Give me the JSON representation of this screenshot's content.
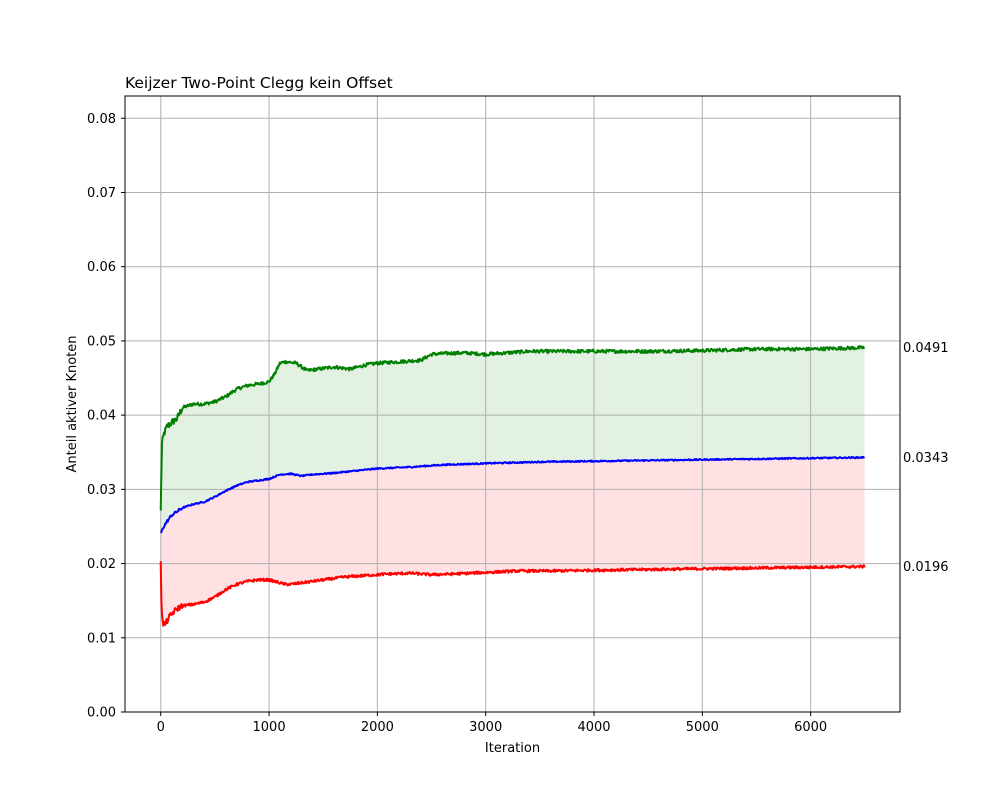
{
  "chart_data": {
    "type": "line",
    "title": "Keijzer Two-Point Clegg kein Offset",
    "xlabel": "Iteration",
    "ylabel": "Anteil aktiver Knoten",
    "xlim": [
      -330,
      6825
    ],
    "ylim": [
      0,
      0.083
    ],
    "x_ticks": [
      0,
      1000,
      2000,
      3000,
      4000,
      5000,
      6000
    ],
    "x_tick_labels": [
      "0",
      "1000",
      "2000",
      "3000",
      "4000",
      "5000",
      "6000"
    ],
    "y_ticks": [
      0,
      0.01,
      0.02,
      0.03,
      0.04,
      0.05,
      0.06,
      0.07,
      0.08
    ],
    "y_tick_labels": [
      "0.00",
      "0.01",
      "0.02",
      "0.03",
      "0.04",
      "0.05",
      "0.06",
      "0.07",
      "0.08"
    ],
    "grid": true,
    "legend": "none",
    "colors": {
      "upper": "#008000",
      "mean": "#0000ff",
      "lower": "#ff0000",
      "fill_upper": "#e3f1e3",
      "fill_lower": "#ffe0e3",
      "grid": "#b0b0b0"
    },
    "series": [
      {
        "key": "upper",
        "x": [
          0,
          10,
          30,
          60,
          100,
          150,
          200,
          300,
          400,
          500,
          600,
          700,
          800,
          900,
          1000,
          1050,
          1100,
          1150,
          1250,
          1350,
          1450,
          1600,
          1750,
          1900,
          2000,
          2200,
          2400,
          2500,
          2600,
          2800,
          3000,
          3200,
          3400,
          3600,
          4000,
          4500,
          5000,
          5500,
          6000,
          6500
        ],
        "values": [
          0.027,
          0.036,
          0.0375,
          0.0385,
          0.039,
          0.0395,
          0.041,
          0.0415,
          0.0415,
          0.0418,
          0.0425,
          0.0435,
          0.044,
          0.0442,
          0.0445,
          0.0455,
          0.047,
          0.0472,
          0.047,
          0.046,
          0.0462,
          0.0465,
          0.0462,
          0.0468,
          0.047,
          0.0472,
          0.0474,
          0.0482,
          0.0483,
          0.0484,
          0.0482,
          0.0484,
          0.0486,
          0.0486,
          0.0486,
          0.0486,
          0.0487,
          0.0489,
          0.0489,
          0.0491
        ]
      },
      {
        "key": "mean",
        "x": [
          0,
          20,
          50,
          100,
          150,
          200,
          300,
          400,
          500,
          600,
          700,
          800,
          900,
          1000,
          1100,
          1200,
          1300,
          1400,
          1600,
          1800,
          2000,
          2300,
          2600,
          3000,
          3500,
          4000,
          4500,
          5000,
          5500,
          6000,
          6500
        ],
        "values": [
          0.024,
          0.0248,
          0.0255,
          0.0265,
          0.027,
          0.0275,
          0.028,
          0.0283,
          0.029,
          0.0298,
          0.0305,
          0.031,
          0.0312,
          0.0314,
          0.032,
          0.0321,
          0.0318,
          0.032,
          0.0322,
          0.0325,
          0.0328,
          0.033,
          0.0333,
          0.0335,
          0.0337,
          0.0338,
          0.0339,
          0.034,
          0.0341,
          0.0342,
          0.0343
        ]
      },
      {
        "key": "lower",
        "x": [
          0,
          5,
          15,
          40,
          80,
          120,
          160,
          200,
          300,
          400,
          500,
          600,
          700,
          800,
          900,
          1000,
          1050,
          1100,
          1150,
          1200,
          1300,
          1500,
          1700,
          1900,
          2100,
          2300,
          2500,
          2700,
          3000,
          3300,
          3600,
          4000,
          4500,
          5000,
          5500,
          6000,
          6500
        ],
        "values": [
          0.0205,
          0.0155,
          0.012,
          0.0118,
          0.0128,
          0.0135,
          0.014,
          0.0143,
          0.0145,
          0.0148,
          0.0155,
          0.0165,
          0.0172,
          0.0176,
          0.0178,
          0.0178,
          0.0176,
          0.0174,
          0.0172,
          0.0172,
          0.0174,
          0.0178,
          0.0182,
          0.0184,
          0.0186,
          0.0187,
          0.0185,
          0.0186,
          0.0188,
          0.019,
          0.019,
          0.0191,
          0.0192,
          0.0193,
          0.0194,
          0.0195,
          0.0196
        ]
      }
    ],
    "end_labels": [
      {
        "text": "0.0491",
        "value": 0.0491
      },
      {
        "text": "0.0343",
        "value": 0.0343
      },
      {
        "text": "0.0196",
        "value": 0.0196
      }
    ]
  }
}
